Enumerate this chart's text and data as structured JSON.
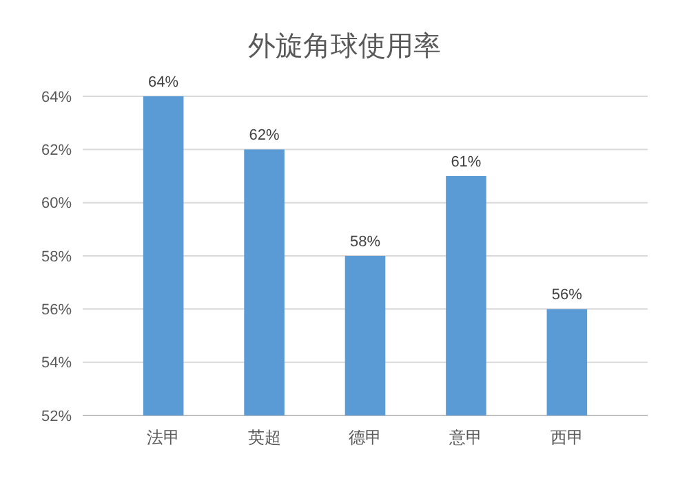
{
  "chart_data": {
    "type": "bar",
    "title": "外旋角球使用率",
    "categories": [
      "法甲",
      "英超",
      "德甲",
      "意甲",
      "西甲"
    ],
    "values": [
      64,
      62,
      58,
      61,
      56
    ],
    "value_labels": [
      "64%",
      "62%",
      "58%",
      "61%",
      "56%"
    ],
    "color": "#5b9bd5",
    "ylim": [
      52,
      64
    ],
    "yticks": [
      {
        "value": 52,
        "label": "52%"
      },
      {
        "value": 54,
        "label": "54%"
      },
      {
        "value": 56,
        "label": "56%"
      },
      {
        "value": 58,
        "label": "58%"
      },
      {
        "value": 60,
        "label": "60%"
      },
      {
        "value": 62,
        "label": "62%"
      },
      {
        "value": 64,
        "label": "64%"
      }
    ],
    "grid": "y"
  }
}
